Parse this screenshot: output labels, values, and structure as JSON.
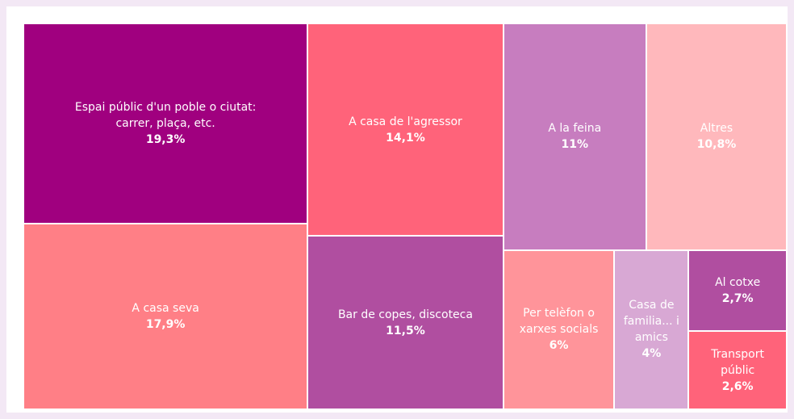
{
  "chart_data": {
    "type": "treemap",
    "categories": [
      "Espai públic d'un poble o ciutat: carrer, plaça, etc.",
      "A casa seva",
      "A casa de l'agressor",
      "Bar de copes, discoteca",
      "A la feina",
      "Altres",
      "Per telèfon o xarxes socials",
      "Casa de familia... i amics",
      "Al cotxe",
      "Transport públic"
    ],
    "values": [
      19.3,
      17.9,
      14.1,
      11.5,
      11,
      10.8,
      6,
      4,
      2.7,
      2.6
    ],
    "value_labels": [
      "19,3%",
      "17,9%",
      "14,1%",
      "11,5%",
      "11%",
      "10,8%",
      "6%",
      "4%",
      "2,7%",
      "2,6%"
    ],
    "colors": [
      "#a0007f",
      "#ff7f86",
      "#ff637a",
      "#b04ea0",
      "#c77dbf",
      "#ffb8bc",
      "#ff949a",
      "#d8a8d4",
      "#b04ea0",
      "#ff637a"
    ]
  }
}
